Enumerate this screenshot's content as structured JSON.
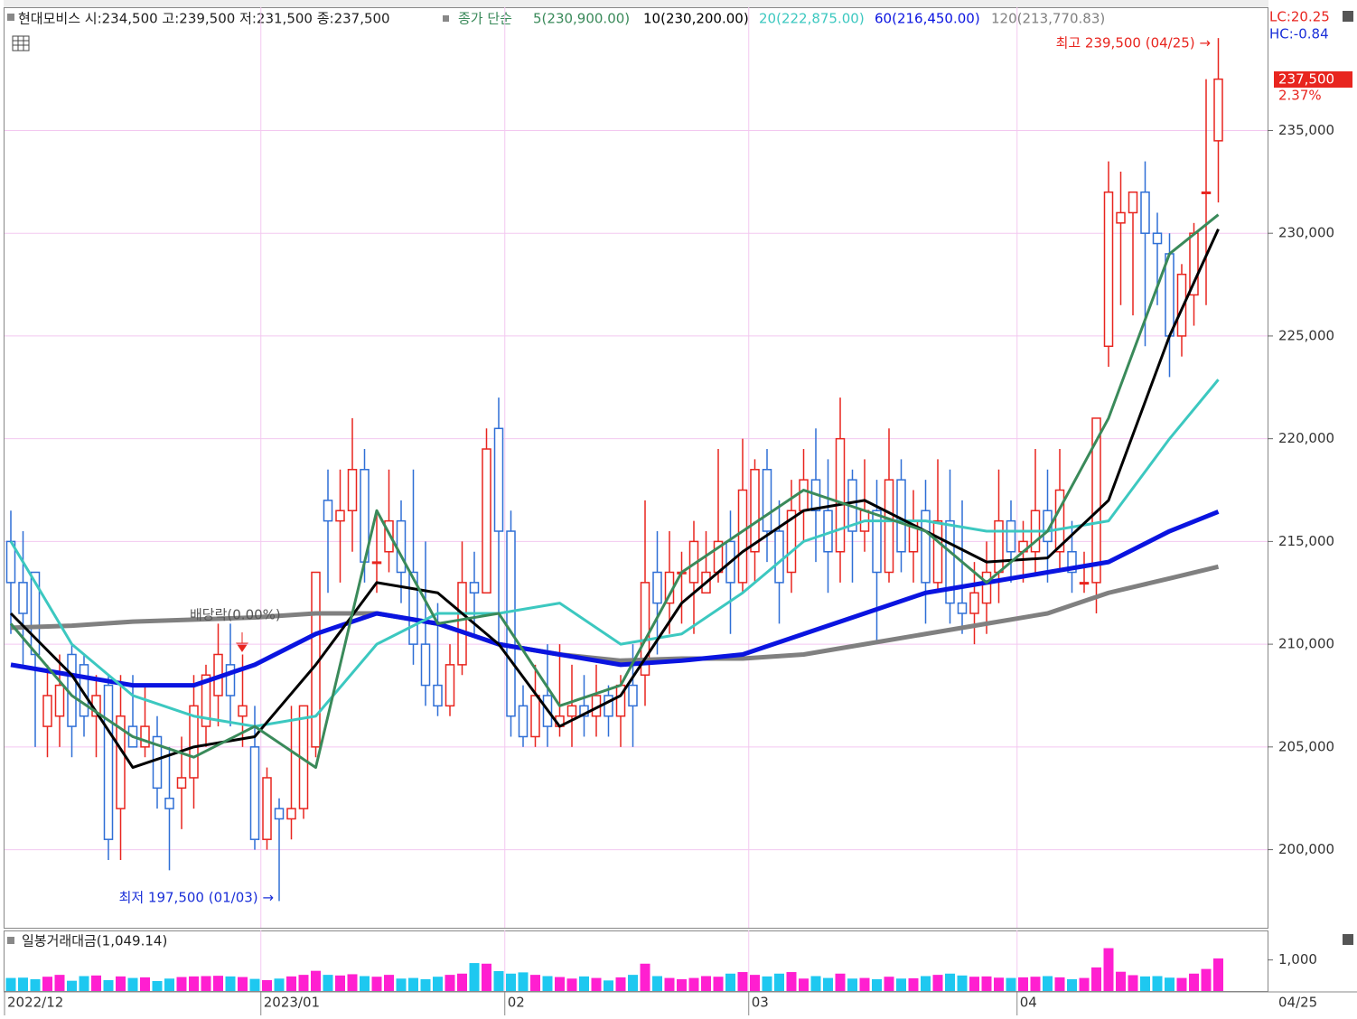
{
  "chart_data": [
    {
      "type": "candlestick",
      "title": "현대모비스 시:234,500 고:239,500 저:231,500 종:237,500",
      "ma_label": "종가 단순",
      "up_color": "#e8251f",
      "down_color": "#2f6fd6",
      "open": [
        215000,
        213000,
        213500,
        206000,
        206500,
        209500,
        209000,
        206500,
        208000,
        202000,
        206000,
        205000,
        205500,
        202500,
        203000,
        203500,
        206000,
        207500,
        209000,
        206500,
        205000,
        200500,
        202000,
        201500,
        202000,
        205000,
        217000,
        216000,
        216500,
        218500,
        214000,
        214500,
        216000,
        213500,
        210000,
        208000,
        207000,
        209000,
        213000,
        212500,
        220500,
        215500,
        207000,
        205500,
        207500,
        206000,
        206500,
        207000,
        206500,
        207500,
        206500,
        208000,
        208500,
        213500,
        212000,
        213500,
        213000,
        212500,
        213500,
        215000,
        213000,
        214500,
        218500,
        215500,
        213500,
        216500,
        218000,
        216500,
        214500,
        218000,
        215500,
        216500,
        213500,
        218000,
        214500,
        216500,
        213000,
        216000,
        212000,
        211500,
        212000,
        213500,
        216000,
        214500,
        214500,
        216500,
        214500,
        214500,
        213000,
        213000,
        224500,
        230500,
        231000,
        232000,
        230000,
        229000,
        225000,
        227000,
        232000,
        234500
      ],
      "high": [
        216500,
        215500,
        213500,
        209000,
        209500,
        210000,
        209500,
        208500,
        208500,
        208500,
        208500,
        208000,
        206500,
        205000,
        205500,
        208500,
        209000,
        211000,
        211000,
        209500,
        207000,
        204000,
        202500,
        207000,
        207000,
        213500,
        218500,
        218500,
        221000,
        219500,
        216500,
        218500,
        217000,
        218500,
        215000,
        212000,
        210000,
        215000,
        214500,
        220500,
        222000,
        216500,
        208000,
        209000,
        210000,
        210000,
        209000,
        208500,
        209000,
        208000,
        208500,
        210000,
        217000,
        215500,
        215500,
        214500,
        216000,
        215500,
        219500,
        216500,
        220000,
        219000,
        219500,
        217000,
        218000,
        219500,
        220500,
        219000,
        222000,
        218500,
        219000,
        218000,
        220500,
        219000,
        217500,
        218000,
        219000,
        218500,
        217000,
        214000,
        215000,
        218500,
        217000,
        216000,
        219500,
        218500,
        219500,
        216000,
        214500,
        221000,
        233500,
        233000,
        232000,
        233500,
        231000,
        230000,
        228500,
        230500,
        237500,
        239500
      ],
      "low": [
        210500,
        209000,
        205000,
        204500,
        205000,
        204500,
        205500,
        204500,
        199500,
        199500,
        205000,
        204500,
        202000,
        199000,
        201000,
        202000,
        205000,
        206000,
        206000,
        205000,
        200000,
        200000,
        197500,
        200500,
        201500,
        204500,
        212500,
        213000,
        214500,
        213000,
        212500,
        213500,
        212000,
        209000,
        207000,
        206500,
        206500,
        208500,
        210500,
        212500,
        210000,
        205500,
        205000,
        205000,
        205000,
        205500,
        205000,
        205500,
        205500,
        205500,
        205000,
        205000,
        207000,
        209500,
        210500,
        211000,
        210500,
        212500,
        213000,
        210500,
        212500,
        213000,
        214000,
        211000,
        212500,
        215000,
        214000,
        212500,
        213000,
        213000,
        214500,
        210000,
        213000,
        213500,
        213000,
        211000,
        212500,
        211000,
        210500,
        210000,
        210500,
        212000,
        213000,
        213000,
        213500,
        213000,
        213500,
        212500,
        212500,
        211500,
        223500,
        226500,
        226000,
        224500,
        226500,
        223000,
        224000,
        225500,
        226500,
        231500
      ],
      "close": [
        213000,
        211500,
        209500,
        207500,
        208000,
        206000,
        206500,
        207500,
        200500,
        206500,
        205000,
        206000,
        203000,
        202000,
        203500,
        207000,
        208500,
        209500,
        207500,
        207000,
        200500,
        203500,
        201500,
        202000,
        207000,
        213500,
        216000,
        216500,
        218500,
        214000,
        214000,
        216000,
        213500,
        210000,
        208000,
        207000,
        209000,
        213000,
        212500,
        219500,
        215500,
        206500,
        205500,
        207500,
        206000,
        206500,
        207000,
        206500,
        207500,
        206500,
        208000,
        207000,
        213000,
        212000,
        213500,
        213500,
        215000,
        213500,
        215000,
        213000,
        217500,
        218500,
        215500,
        213000,
        216500,
        218000,
        216500,
        214500,
        220000,
        215500,
        216500,
        213500,
        218000,
        214500,
        216000,
        213000,
        216000,
        212000,
        211500,
        212500,
        213500,
        216000,
        214500,
        215000,
        216500,
        215000,
        217500,
        213500,
        213000,
        221000,
        232000,
        231000,
        232000,
        230000,
        229500,
        225000,
        228000,
        230000,
        232000,
        237500
      ],
      "series": [
        {
          "name": "5(230,900.00)",
          "color": "#3a8a5a",
          "width": 3,
          "x": [
            0,
            5,
            10,
            15,
            20,
            25,
            30,
            35,
            40,
            45,
            50,
            55,
            60,
            65,
            70,
            75,
            80,
            85,
            90,
            95,
            99
          ],
          "values": [
            211000,
            207500,
            205500,
            204500,
            206000,
            204000,
            216500,
            211000,
            211500,
            207000,
            208000,
            213500,
            215500,
            217500,
            216500,
            215500,
            213000,
            215500,
            221000,
            229000,
            230900
          ]
        },
        {
          "name": "10(230,200.00)",
          "color": "#000000",
          "width": 3,
          "x": [
            0,
            5,
            10,
            15,
            20,
            25,
            30,
            35,
            40,
            45,
            50,
            55,
            60,
            65,
            70,
            75,
            80,
            85,
            90,
            95,
            99
          ],
          "values": [
            211500,
            208500,
            204000,
            205000,
            205500,
            209000,
            213000,
            212500,
            210000,
            206000,
            207500,
            212000,
            214500,
            216500,
            217000,
            215500,
            214000,
            214200,
            217000,
            225000,
            230200
          ]
        },
        {
          "name": "20(222,875.00)",
          "color": "#3cc8c0",
          "width": 3,
          "x": [
            0,
            5,
            10,
            15,
            20,
            25,
            30,
            35,
            40,
            45,
            50,
            55,
            60,
            65,
            70,
            75,
            80,
            85,
            90,
            95,
            99
          ],
          "values": [
            215000,
            210000,
            207500,
            206500,
            206000,
            206500,
            210000,
            211500,
            211500,
            212000,
            210000,
            210500,
            212500,
            215000,
            216000,
            216000,
            215500,
            215500,
            216000,
            220000,
            222875
          ]
        },
        {
          "name": "60(216,450.00)",
          "color": "#0a14e0",
          "width": 5,
          "x": [
            0,
            5,
            10,
            15,
            20,
            25,
            30,
            35,
            40,
            45,
            50,
            55,
            60,
            65,
            70,
            75,
            80,
            85,
            90,
            95,
            99
          ],
          "values": [
            209000,
            208500,
            208000,
            208000,
            209000,
            210500,
            211500,
            211000,
            210000,
            209500,
            209000,
            209200,
            209500,
            210500,
            211500,
            212500,
            213000,
            213500,
            214000,
            215500,
            216450
          ]
        },
        {
          "name": "120(213,770.83)",
          "color": "#808080",
          "width": 5,
          "x": [
            0,
            5,
            10,
            15,
            20,
            25,
            30,
            35,
            40,
            45,
            50,
            55,
            60,
            65,
            70,
            75,
            80,
            85,
            90,
            95,
            99
          ],
          "values": [
            210800,
            210900,
            211100,
            211200,
            211300,
            211500,
            211500,
            211000,
            210000,
            209500,
            209200,
            209300,
            209300,
            209500,
            210000,
            210500,
            211000,
            211500,
            212500,
            213200,
            213770.83
          ]
        }
      ],
      "ylim": [
        196200,
        241000
      ],
      "yticks": [
        {
          "value": 200000,
          "label": "200,000"
        },
        {
          "value": 205000,
          "label": "205,000"
        },
        {
          "value": 210000,
          "label": "210,000"
        },
        {
          "value": 215000,
          "label": "215,000"
        },
        {
          "value": 220000,
          "label": "220,000"
        },
        {
          "value": 225000,
          "label": "225,000"
        },
        {
          "value": 230000,
          "label": "230,000"
        },
        {
          "value": 235000,
          "label": "235,000"
        }
      ],
      "xticks": [
        {
          "value": 0,
          "label": "2022/12"
        },
        {
          "value": 21,
          "label": "2023/01"
        },
        {
          "value": 41,
          "label": "02"
        },
        {
          "value": 61,
          "label": "03"
        },
        {
          "value": 83,
          "label": "04"
        }
      ],
      "last_date": "04/25",
      "price_box": "237,500",
      "change": "2.37%",
      "lc": "LC:20.25",
      "hc": "HC:-0.84",
      "annotations": [
        {
          "text": "최고 239,500 (04/25) →",
          "color": "#e8251f"
        },
        {
          "text": "최저 197,500 (01/03) →",
          "color": "#1a2fd8"
        },
        {
          "text": "배당락(0.00%)",
          "color": "#555555"
        }
      ]
    },
    {
      "type": "bar",
      "title": "일봉거래대금(1,049.14)",
      "up_color": "#ff1fd0",
      "down_color": "#1ec8f0",
      "values": [
        420,
        430,
        380,
        460,
        520,
        330,
        480,
        500,
        350,
        470,
        420,
        440,
        320,
        400,
        450,
        470,
        480,
        490,
        470,
        450,
        390,
        350,
        400,
        470,
        520,
        650,
        520,
        500,
        540,
        480,
        460,
        520,
        400,
        420,
        380,
        460,
        520,
        560,
        900,
        880,
        640,
        560,
        600,
        520,
        480,
        450,
        400,
        470,
        420,
        340,
        440,
        520,
        880,
        480,
        420,
        380,
        420,
        480,
        460,
        560,
        610,
        520,
        470,
        560,
        610,
        400,
        480,
        420,
        560,
        400,
        420,
        380,
        460,
        400,
        410,
        480,
        520,
        560,
        500,
        460,
        470,
        430,
        420,
        440,
        460,
        480,
        440,
        380,
        420,
        760,
        1380,
        620,
        510,
        470,
        480,
        430,
        420,
        560,
        710,
        1049.14
      ],
      "ylim": [
        0,
        1950
      ],
      "yticks": [
        {
          "value": 1000,
          "label": "1,000"
        }
      ]
    }
  ]
}
